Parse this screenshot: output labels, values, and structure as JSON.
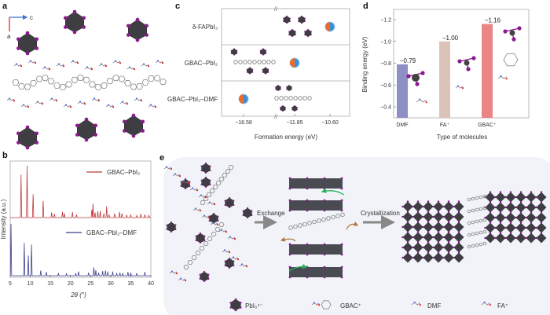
{
  "panels": {
    "a": {
      "label": "a",
      "axis_labels": {
        "horizontal": "c",
        "vertical": "a"
      }
    },
    "b": {
      "label": "b"
    },
    "c": {
      "label": "c"
    },
    "d": {
      "label": "d"
    },
    "e": {
      "label": "e",
      "arrow1": "Exchange",
      "arrow2": "Crystallization",
      "legend": [
        "PbI₆⁴⁻",
        "GBAC⁺",
        "DMF",
        "FA⁺"
      ]
    }
  },
  "colors": {
    "red_series": "#c0393b",
    "blue_series": "#3b3f8c",
    "dmf_bar": "#8e8fc4",
    "fa_bar": "#dcc3b7",
    "gbac_bar": "#e98584",
    "marker_orange": "#ef6a2a",
    "marker_blue": "#3d8fd6",
    "octahedron": "#3d3d42",
    "iodine": "#8b1a8e",
    "panel_e_bg": "#f1f3f8"
  },
  "chart_data": [
    {
      "panel": "b",
      "type": "line",
      "xlabel": "2θ (°)",
      "ylabel": "Intensity (a.u.)",
      "xlim": [
        5,
        40
      ],
      "xticks": [
        "5",
        "10",
        "15",
        "20",
        "25",
        "30",
        "35",
        "40"
      ],
      "legend": "inline",
      "series": [
        {
          "name": "GBAC–PbI₂",
          "color": "#c0393b",
          "peaks": [
            [
              7.7,
              0.83
            ],
            [
              9.2,
              1.0
            ],
            [
              10.7,
              0.45
            ],
            [
              13.2,
              0.32
            ],
            [
              15.3,
              0.1
            ],
            [
              16.0,
              0.07
            ],
            [
              18.0,
              0.11
            ],
            [
              18.5,
              0.08
            ],
            [
              20.5,
              0.11
            ],
            [
              21.5,
              0.06
            ],
            [
              25.3,
              0.15
            ],
            [
              25.6,
              0.27
            ],
            [
              26.1,
              0.1
            ],
            [
              26.8,
              0.12
            ],
            [
              27.4,
              0.13
            ],
            [
              28.3,
              0.08
            ],
            [
              29.0,
              0.22
            ],
            [
              29.6,
              0.06
            ],
            [
              31.0,
              0.08
            ],
            [
              32.2,
              0.11
            ],
            [
              32.8,
              0.08
            ],
            [
              34.0,
              0.05
            ],
            [
              35.0,
              0.06
            ],
            [
              36.5,
              0.04
            ],
            [
              37.5,
              0.07
            ],
            [
              38.5,
              0.06
            ],
            [
              39.5,
              0.05
            ]
          ]
        },
        {
          "name": "GBAC–PbI₂–DMF",
          "color": "#3b3f8c",
          "peaks": [
            [
              5.2,
              1.0
            ],
            [
              8.5,
              0.63
            ],
            [
              9.5,
              0.39
            ],
            [
              10.3,
              0.6
            ],
            [
              12.6,
              0.1
            ],
            [
              14.0,
              0.07
            ],
            [
              17.0,
              0.05
            ],
            [
              19.0,
              0.04
            ],
            [
              21.3,
              0.05
            ],
            [
              22.0,
              0.08
            ],
            [
              24.5,
              0.06
            ],
            [
              25.8,
              0.16
            ],
            [
              26.3,
              0.11
            ],
            [
              27.0,
              0.06
            ],
            [
              28.0,
              0.09
            ],
            [
              28.7,
              0.1
            ],
            [
              29.3,
              0.08
            ],
            [
              30.5,
              0.08
            ],
            [
              31.5,
              0.05
            ],
            [
              32.3,
              0.06
            ],
            [
              33.0,
              0.05
            ],
            [
              34.3,
              0.07
            ],
            [
              35.0,
              0.06
            ],
            [
              36.5,
              0.05
            ],
            [
              38.5,
              0.07
            ]
          ]
        }
      ]
    },
    {
      "panel": "c",
      "type": "scatter",
      "xlabel": "Formation energy (eV)",
      "xticks": [
        "−18.58",
        "−11.85",
        "−10.60"
      ],
      "axis_break": true,
      "categories": [
        "δ-FAPbI₃",
        "GBAC–PbI₂",
        "GBAC–PbI₂–DMF"
      ],
      "values": [
        -10.6,
        -11.85,
        -18.58
      ]
    },
    {
      "panel": "d",
      "type": "bar",
      "xlabel": "Type of molecules",
      "ylabel": "Binding energy (eV)",
      "ylim": [
        -0.3,
        -1.3
      ],
      "yticks": [
        "−1.2",
        "−1.0",
        "−0.8",
        "−0.6",
        "−0.4"
      ],
      "categories": [
        "DMF",
        "FA⁺",
        "GBAC⁺"
      ],
      "values": [
        -0.79,
        -1.0,
        -1.16
      ],
      "data_labels": [
        "−0.79",
        "−1.00",
        "−1.16"
      ]
    }
  ]
}
